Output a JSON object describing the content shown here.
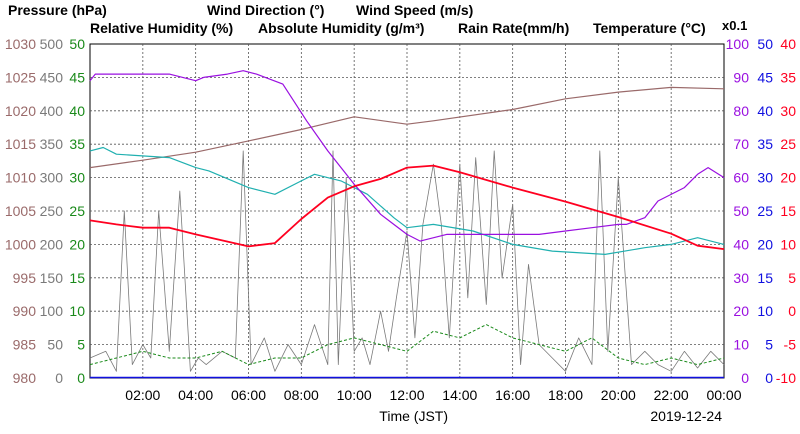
{
  "colors": {
    "pressure": "#9a6a6a",
    "direction": "#7a7a7a",
    "speed": "#1a8a1a",
    "humidity": "#9a10e0",
    "absolute": "#20b0b0",
    "rain": "#1010e0",
    "temperature": "#ff0020",
    "axis": "#000000",
    "grid": "#555555"
  },
  "titles": {
    "pressure": "Pressure (hPa)",
    "direction": "Wind Direction (°)",
    "speed": "Wind Speed (m/s)",
    "humidity": "Relative Humidity (%)",
    "absolute": "Absolute Humidity (g/m³)",
    "rain": "Rain Rate(mm/h)",
    "temperature": "Temperature (°C)",
    "x01": "x0.1"
  },
  "chart_data": {
    "type": "line",
    "xlabel": "Time (JST)",
    "date_label": "2019-12-24",
    "x_ticks": [
      "02:00",
      "04:00",
      "06:00",
      "08:00",
      "10:00",
      "12:00",
      "14:00",
      "16:00",
      "18:00",
      "20:00",
      "22:00",
      "00:00"
    ],
    "x_range_hours": [
      0,
      24
    ],
    "grid": true,
    "axes": {
      "pressure": {
        "ticks": [
          "1030",
          "1025",
          "1020",
          "1015",
          "1010",
          "1005",
          "1000",
          "995",
          "990",
          "985",
          "980"
        ],
        "range": [
          980,
          1030
        ]
      },
      "direction": {
        "ticks": [
          "500",
          "450",
          "400",
          "350",
          "300",
          "250",
          "200",
          "150",
          "100",
          "50",
          "0"
        ],
        "range": [
          0,
          500
        ]
      },
      "speed": {
        "ticks": [
          "50",
          "45",
          "40",
          "35",
          "30",
          "25",
          "20",
          "15",
          "10",
          "5",
          "0"
        ],
        "range": [
          0,
          50
        ]
      },
      "humidity": {
        "ticks": [
          "100",
          "90",
          "80",
          "70",
          "60",
          "50",
          "40",
          "30",
          "20",
          "10",
          "0"
        ],
        "range": [
          0,
          100
        ]
      },
      "rain": {
        "ticks": [
          "50",
          "45",
          "40",
          "35",
          "30",
          "25",
          "20",
          "15",
          "10",
          "5",
          "0"
        ],
        "range": [
          0,
          50
        ]
      },
      "temperature": {
        "ticks": [
          "40",
          "35",
          "30",
          "25",
          "20",
          "15",
          "10",
          "5",
          "0",
          "-5",
          "-10"
        ],
        "range": [
          -10,
          40
        ]
      }
    },
    "series": [
      {
        "name": "Pressure (hPa)",
        "axis": "pressure",
        "x": [
          0,
          2,
          4,
          6,
          8,
          10,
          12,
          13,
          16,
          18,
          20,
          22,
          24
        ],
        "y": [
          1011.5,
          1012.6,
          1013.8,
          1015.5,
          1017.2,
          1019.1,
          1018.0,
          1018.5,
          1020.2,
          1021.8,
          1022.8,
          1023.5,
          1023.3
        ]
      },
      {
        "name": "Relative Humidity (%)",
        "axis": "humidity",
        "x": [
          0,
          0.2,
          0.4,
          3,
          4,
          4.3,
          5.2,
          5.8,
          6.3,
          7.3,
          8.2,
          9,
          10,
          11,
          11.5,
          12,
          12.5,
          13.5,
          14.5,
          16,
          17,
          18,
          19,
          20,
          20.3,
          21,
          21.5,
          22.5,
          23,
          23.4,
          24
        ],
        "y": [
          89,
          91,
          91,
          91,
          89,
          90,
          91,
          92,
          91,
          88,
          77,
          68,
          58,
          49,
          46,
          43,
          41,
          43,
          43,
          43,
          43,
          44,
          45,
          46,
          46,
          48,
          53,
          57,
          61,
          63,
          60
        ]
      },
      {
        "name": "Absolute Humidity (g/m³)",
        "axis": "humidity",
        "scale": "x0.1",
        "x": [
          0,
          0.5,
          1,
          3,
          4,
          4.5,
          6,
          7,
          8,
          8.5,
          9.5,
          10.5,
          11.5,
          12,
          13,
          14.5,
          16,
          17.5,
          19.5,
          21,
          22,
          23,
          24
        ],
        "y": [
          68,
          69,
          67,
          66,
          63,
          62,
          57,
          55,
          59,
          61,
          59,
          55,
          48,
          45,
          46,
          44,
          40,
          38,
          37,
          39,
          40,
          42,
          40
        ]
      },
      {
        "name": "Temperature (°C)",
        "axis": "temperature",
        "x": [
          0,
          1,
          2,
          3,
          4,
          5,
          6,
          7,
          8,
          9,
          10,
          11,
          12,
          13,
          14,
          16,
          18,
          20,
          22,
          23,
          24
        ],
        "y": [
          13.6,
          13.0,
          12.5,
          12.5,
          11.5,
          10.6,
          9.7,
          10.2,
          13.8,
          17.0,
          18.7,
          19.8,
          21.5,
          21.8,
          20.8,
          18.5,
          16.4,
          14.1,
          11.6,
          9.8,
          9.3
        ]
      },
      {
        "name": "Wind Speed (m/s)",
        "axis": "speed",
        "x": [
          0,
          1,
          2,
          3,
          4,
          5,
          6,
          7,
          8,
          9,
          10,
          11,
          12,
          13,
          14,
          15,
          16,
          17,
          18,
          19,
          20,
          21,
          22,
          23,
          24
        ],
        "y": [
          2,
          3,
          4,
          3,
          3,
          4,
          2,
          3,
          3,
          5,
          6,
          5,
          4,
          7,
          6,
          8,
          6,
          5,
          4,
          6,
          3,
          2,
          3,
          2,
          3
        ]
      },
      {
        "name": "Wind Direction (°)",
        "axis": "direction",
        "x": [
          0,
          0.6,
          1.0,
          1.3,
          1.6,
          2.0,
          2.3,
          2.6,
          3.0,
          3.4,
          3.8,
          4.1,
          4.4,
          5.0,
          5.5,
          5.8,
          6.1,
          6.6,
          7.0,
          7.5,
          8.0,
          8.5,
          9.0,
          9.2,
          9.4,
          9.7,
          10.0,
          10.3,
          10.6,
          11.0,
          11.3,
          11.6,
          12.0,
          12.3,
          12.6,
          13.0,
          13.3,
          13.6,
          14.0,
          14.3,
          14.6,
          15.0,
          15.3,
          15.6,
          16.0,
          16.3,
          16.6,
          17.0,
          17.5,
          18.0,
          18.5,
          19.0,
          19.3,
          19.6,
          20.0,
          20.5,
          21.0,
          21.5,
          22.0,
          22.5,
          23.0,
          23.5,
          24.0
        ],
        "y": [
          30,
          40,
          10,
          250,
          20,
          50,
          30,
          250,
          40,
          280,
          10,
          30,
          20,
          40,
          30,
          340,
          20,
          60,
          10,
          50,
          20,
          80,
          20,
          340,
          20,
          300,
          40,
          60,
          20,
          100,
          40,
          120,
          220,
          60,
          230,
          320,
          230,
          60,
          320,
          120,
          330,
          110,
          340,
          150,
          260,
          20,
          170,
          50,
          30,
          10,
          60,
          20,
          340,
          40,
          300,
          20,
          40,
          20,
          10,
          40,
          15,
          40,
          20
        ]
      }
    ]
  }
}
